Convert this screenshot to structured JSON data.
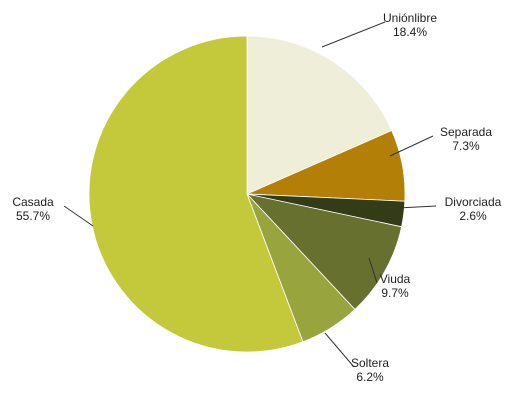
{
  "chart_data": {
    "type": "pie",
    "title": "",
    "start_angle_deg": 0,
    "direction": "clockwise",
    "slices": [
      {
        "category": "Unión libre",
        "label": "Uniónlibre",
        "value_label": "18.4%",
        "value": 18.4,
        "color": "#efefd9"
      },
      {
        "category": "Separada",
        "label": "Separada",
        "value_label": "7.3%",
        "value": 7.3,
        "color": "#b37f06"
      },
      {
        "category": "Divorciada",
        "label": "Divorciada",
        "value_label": "2.6%",
        "value": 2.6,
        "color": "#333c16"
      },
      {
        "category": "Viuda",
        "label": "Viuda",
        "value_label": "9.7%",
        "value": 9.7,
        "color": "#687030"
      },
      {
        "category": "Soltera",
        "label": "Soltera",
        "value_label": "6.2%",
        "value": 6.2,
        "color": "#98a43e"
      },
      {
        "category": "Casada",
        "label": "Casada",
        "value_label": "55.7%",
        "value": 55.7,
        "color": "#c3c93b"
      }
    ]
  }
}
